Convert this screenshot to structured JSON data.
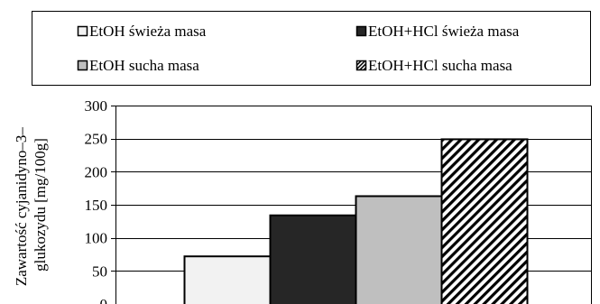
{
  "chart_data": {
    "type": "bar",
    "title": "",
    "xlabel": "",
    "ylabel_lines": [
      "Zawartość cyjanidyno–3–",
      "glukozydu [mg/100g]"
    ],
    "ylim": [
      0,
      300
    ],
    "yticks": [
      0,
      50,
      100,
      150,
      200,
      250,
      300
    ],
    "grid": true,
    "legend_position": "top",
    "series": [
      {
        "name": "EtOH świeża masa",
        "values": [
          72
        ],
        "fill": "#f2f2f2",
        "pattern": "none"
      },
      {
        "name": "EtOH+HCl świeża masa",
        "values": [
          134
        ],
        "fill": "#262626",
        "pattern": "none"
      },
      {
        "name": "EtOH sucha masa",
        "values": [
          163
        ],
        "fill": "#bfbfbf",
        "pattern": "none"
      },
      {
        "name": "EtOH+HCl sucha masa",
        "values": [
          249
        ],
        "fill": "#ffffff",
        "pattern": "diagonal-stripes"
      }
    ],
    "colors": {
      "bar_stroke": "#000000",
      "grid": "#000000",
      "stripe": "#000000"
    }
  }
}
